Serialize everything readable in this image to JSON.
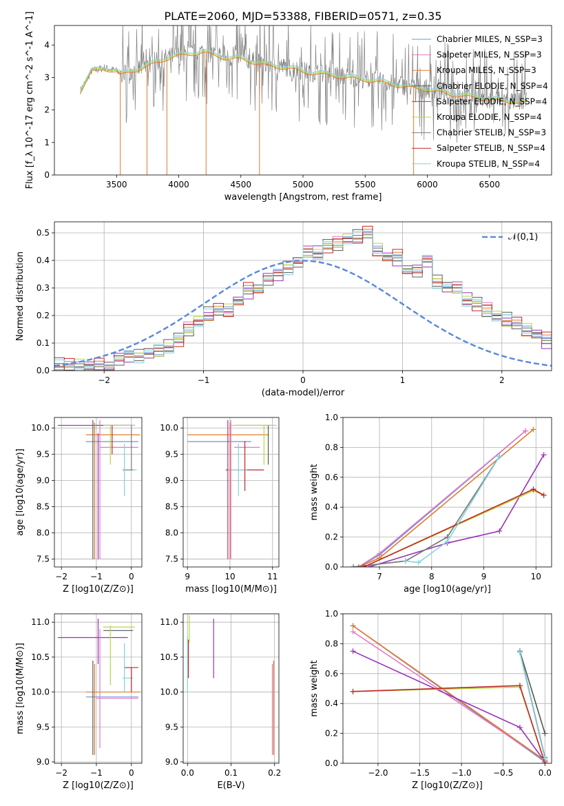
{
  "figure": {
    "title": "PLATE=2060, MJD=53388, FIBERID=0571, z=0.35"
  },
  "legend": {
    "entries": [
      "Chabrier MILES, N_SSP=3",
      "Salpeter MILES, N_SSP=3",
      "Kroupa MILES, N_SSP=3",
      "Chabrier ELODIE, N_SSP=4",
      "Salpeter ELODIE, N_SSP=4",
      "Kroupa ELODIE, N_SSP=4",
      "Chabrier STELIB, N_SSP=3",
      "Salpeter STELIB, N_SSP=4",
      "Kroupa STELIB, N_SSP=4"
    ],
    "colors": [
      "#6a95d8",
      "#e377c2",
      "#e0782b",
      "#555555",
      "#9a2fb8",
      "#b5d93c",
      "#7f7f7f",
      "#c0252a",
      "#82d4dc"
    ]
  },
  "chart_data": [
    {
      "id": "spectrum",
      "type": "line",
      "xlabel": "wavelength [Angstrom, rest frame]",
      "ylabel": "Flux [f_λ 10^-17 erg cm^-2 s^-1 A^-1]",
      "xlim": [
        3000,
        7000
      ],
      "ylim": [
        0,
        4.6
      ],
      "xticks": [
        "3500",
        "4000",
        "4500",
        "5000",
        "5500",
        "6000",
        "6500"
      ],
      "yticks": [
        "0",
        "1",
        "2",
        "3",
        "4"
      ],
      "data_color": "#7f7f7f",
      "model_color": "#82d4dc",
      "continuum": {
        "x": [
          3210,
          3300,
          3400,
          3500,
          3540,
          3600,
          3700,
          3800,
          3900,
          4000,
          4100,
          4200,
          4300,
          4400,
          4500,
          4600,
          4700,
          4800,
          4900,
          5000,
          5200,
          5400,
          5600,
          5800,
          6000,
          6200,
          6400,
          6600,
          6800
        ],
        "y": [
          2.6,
          3.2,
          3.3,
          3.2,
          3.1,
          3.2,
          3.3,
          3.45,
          3.6,
          3.7,
          3.75,
          3.8,
          3.7,
          3.6,
          3.6,
          3.5,
          3.4,
          3.35,
          3.3,
          3.2,
          3.1,
          3.0,
          2.9,
          2.75,
          2.65,
          2.5,
          2.4,
          2.3,
          2.25
        ]
      },
      "spike_range": [
        3540,
        6800
      ]
    },
    {
      "id": "residuals",
      "type": "histogram",
      "xlabel": "(data-model)/error",
      "ylabel": "Normed distribution",
      "xlim": [
        -2.5,
        2.5
      ],
      "ylim": [
        0,
        0.54
      ],
      "xticks": [
        "−2",
        "−1",
        "0",
        "1",
        "2"
      ],
      "yticks": [
        "0.0",
        "0.1",
        "0.2",
        "0.3",
        "0.4",
        "0.5"
      ],
      "gaussian_label": "𝒩(0,1)",
      "gaussian_color": "#5b8bd9",
      "bin_width": 0.1,
      "bin_start": -2.5,
      "counts": [
        0.015,
        0.02,
        0.02,
        0.015,
        0.015,
        0.02,
        0.04,
        0.055,
        0.06,
        0.06,
        0.07,
        0.09,
        0.11,
        0.15,
        0.18,
        0.2,
        0.22,
        0.22,
        0.25,
        0.29,
        0.3,
        0.33,
        0.35,
        0.38,
        0.39,
        0.43,
        0.43,
        0.45,
        0.46,
        0.48,
        0.48,
        0.5,
        0.44,
        0.41,
        0.41,
        0.37,
        0.36,
        0.4,
        0.33,
        0.3,
        0.3,
        0.26,
        0.24,
        0.22,
        0.2,
        0.18,
        0.17,
        0.15,
        0.13,
        0.11,
        0.1,
        0.08,
        0.07,
        0.065,
        0.06,
        0.05,
        0.045,
        0.04,
        0.035,
        0.03
      ]
    },
    {
      "id": "age-vs-Z",
      "type": "scatter",
      "xlabel": "Z [log10(Z/Z⊙)]",
      "ylabel": "age  [log10(age/yr)]",
      "xlim": [
        -2.2,
        0.3
      ],
      "ylim": [
        7.35,
        10.2
      ],
      "xticks": [
        "−2",
        "−1",
        "0"
      ],
      "yticks": [
        "7.5",
        "8.0",
        "8.5",
        "9.0",
        "9.5",
        "10.0"
      ]
    },
    {
      "id": "age-vs-mass",
      "type": "scatter",
      "xlabel": "mass [log10(M/M⊙)]",
      "xlim": [
        8.9,
        11.15
      ],
      "ylim": [
        7.35,
        10.2
      ],
      "xticks": [
        "9",
        "10",
        "11"
      ],
      "yticks": [
        "7.5",
        "8.0",
        "8.5",
        "9.0",
        "9.5",
        "10.0"
      ]
    },
    {
      "id": "weight-vs-age",
      "type": "line",
      "xlabel": "age  [log10(age/yr)]",
      "ylabel": "mass weight",
      "xlim": [
        6.3,
        10.3
      ],
      "ylim": [
        0,
        1
      ],
      "xticks": [
        "7",
        "8",
        "9",
        "10"
      ],
      "yticks": [
        "0.0",
        "0.2",
        "0.4",
        "0.6",
        "0.8",
        "1.0"
      ],
      "series": [
        {
          "x": [
            6.6,
            7.0,
            9.8
          ],
          "y": [
            0.0,
            0.08,
            0.91
          ]
        },
        {
          "x": [
            6.6,
            7.0,
            9.8
          ],
          "y": [
            0.0,
            0.09,
            0.91
          ]
        },
        {
          "x": [
            6.6,
            7.0,
            9.95
          ],
          "y": [
            0.0,
            0.06,
            0.92
          ]
        },
        {
          "x": [
            6.5,
            7.5,
            8.3,
            9.3
          ],
          "y": [
            0.0,
            0.04,
            0.2,
            0.74
          ]
        },
        {
          "x": [
            6.8,
            8.3,
            9.3,
            10.15
          ],
          "y": [
            0.0,
            0.16,
            0.24,
            0.75
          ]
        },
        {
          "x": [
            6.7,
            9.95,
            10.15
          ],
          "y": [
            0.0,
            0.51,
            0.48
          ]
        },
        {
          "x": [
            6.5,
            7.5,
            8.3,
            9.3
          ],
          "y": [
            0.0,
            0.04,
            0.2,
            0.74
          ]
        },
        {
          "x": [
            6.7,
            9.95,
            10.15
          ],
          "y": [
            0.0,
            0.52,
            0.48
          ]
        },
        {
          "x": [
            7.5,
            7.75,
            8.3,
            9.3
          ],
          "y": [
            0.04,
            0.03,
            0.17,
            0.74
          ]
        }
      ]
    },
    {
      "id": "mass-vs-Z",
      "type": "scatter",
      "xlabel": "Z [log10(Z/Z⊙)]",
      "ylabel": "mass [log10(M/M⊙)]",
      "xlim": [
        -2.2,
        0.3
      ],
      "ylim": [
        8.98,
        11.12
      ],
      "xticks": [
        "−2",
        "−1",
        "0"
      ],
      "yticks": [
        "9.0",
        "9.5",
        "10.0",
        "10.5",
        "11.0"
      ]
    },
    {
      "id": "mass-vs-EBV",
      "type": "scatter",
      "xlabel": "E(B-V)",
      "xlim": [
        -0.01,
        0.21
      ],
      "ylim": [
        8.98,
        11.12
      ],
      "xticks": [
        "0.0",
        "0.1",
        "0.2"
      ],
      "yticks": [
        "9.0",
        "9.5",
        "10.0",
        "10.5",
        "11.0"
      ]
    },
    {
      "id": "weight-vs-Z",
      "type": "line",
      "xlabel": "Z [log10(Z/Z⊙)]",
      "ylabel": "mass weight",
      "xlim": [
        -2.42,
        0.08
      ],
      "ylim": [
        0,
        1
      ],
      "xticks": [
        "−2.0",
        "−1.5",
        "−1.0",
        "−0.5",
        "0.0"
      ],
      "yticks": [
        "0.0",
        "0.2",
        "0.4",
        "0.6",
        "0.8",
        "1.0"
      ],
      "series": [
        {
          "x": [
            -2.3,
            0.0
          ],
          "y": [
            0.92,
            0.01
          ]
        },
        {
          "x": [
            -2.3,
            0.0
          ],
          "y": [
            0.88,
            0.02
          ]
        },
        {
          "x": [
            -2.3,
            0.0
          ],
          "y": [
            0.92,
            0.02
          ]
        },
        {
          "x": [
            -0.3,
            0.0
          ],
          "y": [
            0.75,
            0.2
          ]
        },
        {
          "x": [
            -2.3,
            -0.3,
            0.0
          ],
          "y": [
            0.75,
            0.24,
            0.01
          ]
        },
        {
          "x": [
            -2.3,
            -0.3,
            0.0
          ],
          "y": [
            0.48,
            0.51,
            0.0
          ]
        },
        {
          "x": [
            -0.3,
            0.0
          ],
          "y": [
            0.75,
            0.04
          ]
        },
        {
          "x": [
            -2.3,
            -0.3,
            0.0
          ],
          "y": [
            0.48,
            0.52,
            0.0
          ]
        },
        {
          "x": [
            -0.3,
            0.0
          ],
          "y": [
            0.74,
            0.03
          ]
        }
      ]
    }
  ]
}
